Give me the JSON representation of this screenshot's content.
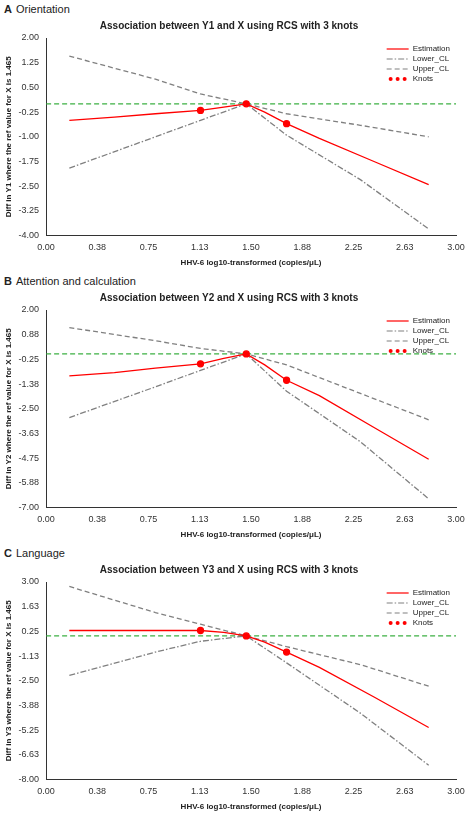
{
  "chart_data": [
    {
      "type": "line",
      "panel_label": "A",
      "subtitle": "Orientation",
      "title": "Association between Y1 and X using RCS with 3 knots",
      "x_label": "HHV-6 log10-transformed (copies/μL)",
      "y_label": "Diff in Y1 where the ref value for X is 1.465",
      "xlim": [
        0,
        3
      ],
      "xticks": [
        {
          "value": 0,
          "label": "0.00"
        },
        {
          "value": 0.375,
          "label": "0.38"
        },
        {
          "value": 0.75,
          "label": "0.75"
        },
        {
          "value": 1.125,
          "label": "1.13"
        },
        {
          "value": 1.5,
          "label": "1.50"
        },
        {
          "value": 1.875,
          "label": "1.88"
        },
        {
          "value": 2.25,
          "label": "2.25"
        },
        {
          "value": 2.625,
          "label": "2.63"
        },
        {
          "value": 3,
          "label": "3.00"
        }
      ],
      "ylim": [
        -4,
        2
      ],
      "yticks": [
        {
          "value": 2,
          "label": "2.00"
        },
        {
          "value": 1.25,
          "label": "1.25"
        },
        {
          "value": 0.5,
          "label": "0.50"
        },
        {
          "value": -0.25,
          "label": "-0.25"
        },
        {
          "value": -1,
          "label": "-1.00"
        },
        {
          "value": -1.75,
          "label": "-1.75"
        },
        {
          "value": -2.5,
          "label": "-2.50"
        },
        {
          "value": -3.25,
          "label": "-3.25"
        },
        {
          "value": -4,
          "label": "-4.00"
        }
      ],
      "grid": false,
      "legend": "upper right",
      "reference": {
        "value": 0,
        "color": "#3cb043",
        "line_style": "dashed"
      },
      "series": [
        {
          "name": "Estimation",
          "type": "line",
          "color": "#ff0000",
          "line_style": "solid",
          "x": [
            0.17,
            0.5,
            0.8,
            1.13,
            1.3,
            1.465,
            1.6,
            1.76,
            2.0,
            2.4,
            2.8
          ],
          "values": [
            -0.5,
            -0.4,
            -0.3,
            -0.2,
            -0.1,
            0,
            -0.25,
            -0.6,
            -1.05,
            -1.75,
            -2.45
          ]
        },
        {
          "name": "Lower_CL",
          "type": "line",
          "color": "#808080",
          "line_style": "dashdot",
          "x": [
            0.17,
            0.8,
            1.13,
            1.465,
            1.76,
            2.3,
            2.8
          ],
          "values": [
            -1.95,
            -1.0,
            -0.5,
            0,
            -0.95,
            -2.3,
            -3.8
          ]
        },
        {
          "name": "Upper_CL",
          "type": "line",
          "color": "#808080",
          "line_style": "dashed",
          "x": [
            0.17,
            0.8,
            1.13,
            1.465,
            1.76,
            2.3,
            2.8
          ],
          "values": [
            1.45,
            0.75,
            0.3,
            0,
            -0.3,
            -0.65,
            -1.0
          ]
        },
        {
          "name": "Knots",
          "type": "scatter",
          "color": "#ff0000",
          "marker": "circle",
          "x": [
            1.13,
            1.465,
            1.76
          ],
          "values": [
            -0.2,
            0,
            -0.6
          ]
        }
      ]
    },
    {
      "type": "line",
      "panel_label": "B",
      "subtitle": "Attention and calculation",
      "title": "Association between Y2 and X using RCS with 3 knots",
      "x_label": "HHV-6 log10-transformed (copies/μL)",
      "y_label": "Diff in Y2 where the ref value for X is 1.465",
      "xlim": [
        0,
        3
      ],
      "xticks": [
        {
          "value": 0,
          "label": "0.00"
        },
        {
          "value": 0.375,
          "label": "0.38"
        },
        {
          "value": 0.75,
          "label": "0.75"
        },
        {
          "value": 1.125,
          "label": "1.13"
        },
        {
          "value": 1.5,
          "label": "1.50"
        },
        {
          "value": 1.875,
          "label": "1.88"
        },
        {
          "value": 2.25,
          "label": "2.25"
        },
        {
          "value": 2.625,
          "label": "2.63"
        },
        {
          "value": 3,
          "label": "3.00"
        }
      ],
      "ylim": [
        -7,
        2
      ],
      "yticks": [
        {
          "value": 2,
          "label": "2.00"
        },
        {
          "value": 0.875,
          "label": "0.88"
        },
        {
          "value": -0.25,
          "label": "-0.25"
        },
        {
          "value": -1.375,
          "label": "-1.38"
        },
        {
          "value": -2.5,
          "label": "-2.50"
        },
        {
          "value": -3.625,
          "label": "-3.63"
        },
        {
          "value": -4.75,
          "label": "-4.75"
        },
        {
          "value": -5.875,
          "label": "-5.88"
        },
        {
          "value": -7,
          "label": "-7.00"
        }
      ],
      "grid": false,
      "legend": "upper right",
      "reference": {
        "value": 0,
        "color": "#3cb043",
        "line_style": "dashed"
      },
      "series": [
        {
          "name": "Estimation",
          "type": "line",
          "color": "#ff0000",
          "line_style": "solid",
          "x": [
            0.17,
            0.5,
            0.8,
            1.13,
            1.3,
            1.465,
            1.6,
            1.76,
            2.0,
            2.4,
            2.8
          ],
          "values": [
            -1.0,
            -0.85,
            -0.65,
            -0.45,
            -0.2,
            0,
            -0.5,
            -1.2,
            -1.9,
            -3.35,
            -4.8
          ]
        },
        {
          "name": "Lower_CL",
          "type": "line",
          "color": "#808080",
          "line_style": "dashdot",
          "x": [
            0.17,
            0.8,
            1.13,
            1.465,
            1.76,
            2.3,
            2.8
          ],
          "values": [
            -2.9,
            -1.5,
            -0.75,
            0,
            -1.7,
            -4.0,
            -6.6
          ]
        },
        {
          "name": "Upper_CL",
          "type": "line",
          "color": "#808080",
          "line_style": "dashed",
          "x": [
            0.17,
            0.8,
            1.13,
            1.465,
            1.76,
            2.3,
            2.8
          ],
          "values": [
            1.2,
            0.6,
            0.25,
            0,
            -0.5,
            -1.8,
            -3.0
          ]
        },
        {
          "name": "Knots",
          "type": "scatter",
          "color": "#ff0000",
          "marker": "circle",
          "x": [
            1.13,
            1.465,
            1.76
          ],
          "values": [
            -0.45,
            0,
            -1.2
          ]
        }
      ]
    },
    {
      "type": "line",
      "panel_label": "C",
      "subtitle": "Language",
      "title": "Association between Y3 and X using RCS with 3 knots",
      "x_label": "HHV-6 log10-transformed (copies/μL)",
      "y_label": "Diff in Y3 where the ref value for X is 1.465",
      "xlim": [
        0,
        3
      ],
      "xticks": [
        {
          "value": 0,
          "label": "0.00"
        },
        {
          "value": 0.375,
          "label": "0.38"
        },
        {
          "value": 0.75,
          "label": "0.75"
        },
        {
          "value": 1.125,
          "label": "1.13"
        },
        {
          "value": 1.5,
          "label": "1.50"
        },
        {
          "value": 1.875,
          "label": "1.88"
        },
        {
          "value": 2.25,
          "label": "2.25"
        },
        {
          "value": 2.625,
          "label": "2.63"
        },
        {
          "value": 3,
          "label": "3.00"
        }
      ],
      "ylim": [
        -8,
        3
      ],
      "yticks": [
        {
          "value": 3,
          "label": "3.00"
        },
        {
          "value": 1.625,
          "label": "1.63"
        },
        {
          "value": 0.25,
          "label": "0.25"
        },
        {
          "value": -1.125,
          "label": "-1.13"
        },
        {
          "value": -2.5,
          "label": "-2.50"
        },
        {
          "value": -3.875,
          "label": "-3.88"
        },
        {
          "value": -5.25,
          "label": "-5.25"
        },
        {
          "value": -6.625,
          "label": "-6.63"
        },
        {
          "value": -8,
          "label": "-8.00"
        }
      ],
      "grid": false,
      "legend": "upper right",
      "reference": {
        "value": 0,
        "color": "#3cb043",
        "line_style": "dashed"
      },
      "series": [
        {
          "name": "Estimation",
          "type": "line",
          "color": "#ff0000",
          "line_style": "solid",
          "x": [
            0.17,
            0.5,
            0.8,
            1.13,
            1.3,
            1.465,
            1.6,
            1.76,
            2.0,
            2.4,
            2.8
          ],
          "values": [
            0.3,
            0.3,
            0.3,
            0.3,
            0.2,
            0,
            -0.35,
            -0.9,
            -1.75,
            -3.4,
            -5.1
          ]
        },
        {
          "name": "Lower_CL",
          "type": "line",
          "color": "#808080",
          "line_style": "dashdot",
          "x": [
            0.17,
            0.8,
            1.13,
            1.465,
            1.76,
            2.3,
            2.8
          ],
          "values": [
            -2.2,
            -0.9,
            -0.3,
            0,
            -1.5,
            -4.3,
            -7.2
          ]
        },
        {
          "name": "Upper_CL",
          "type": "line",
          "color": "#808080",
          "line_style": "dashed",
          "x": [
            0.17,
            0.8,
            1.13,
            1.465,
            1.76,
            2.3,
            2.8
          ],
          "values": [
            2.75,
            1.3,
            0.65,
            0,
            -0.6,
            -1.6,
            -2.8
          ]
        },
        {
          "name": "Knots",
          "type": "scatter",
          "color": "#ff0000",
          "marker": "circle",
          "x": [
            1.13,
            1.465,
            1.76
          ],
          "values": [
            0.3,
            0,
            -0.9
          ]
        }
      ]
    }
  ]
}
